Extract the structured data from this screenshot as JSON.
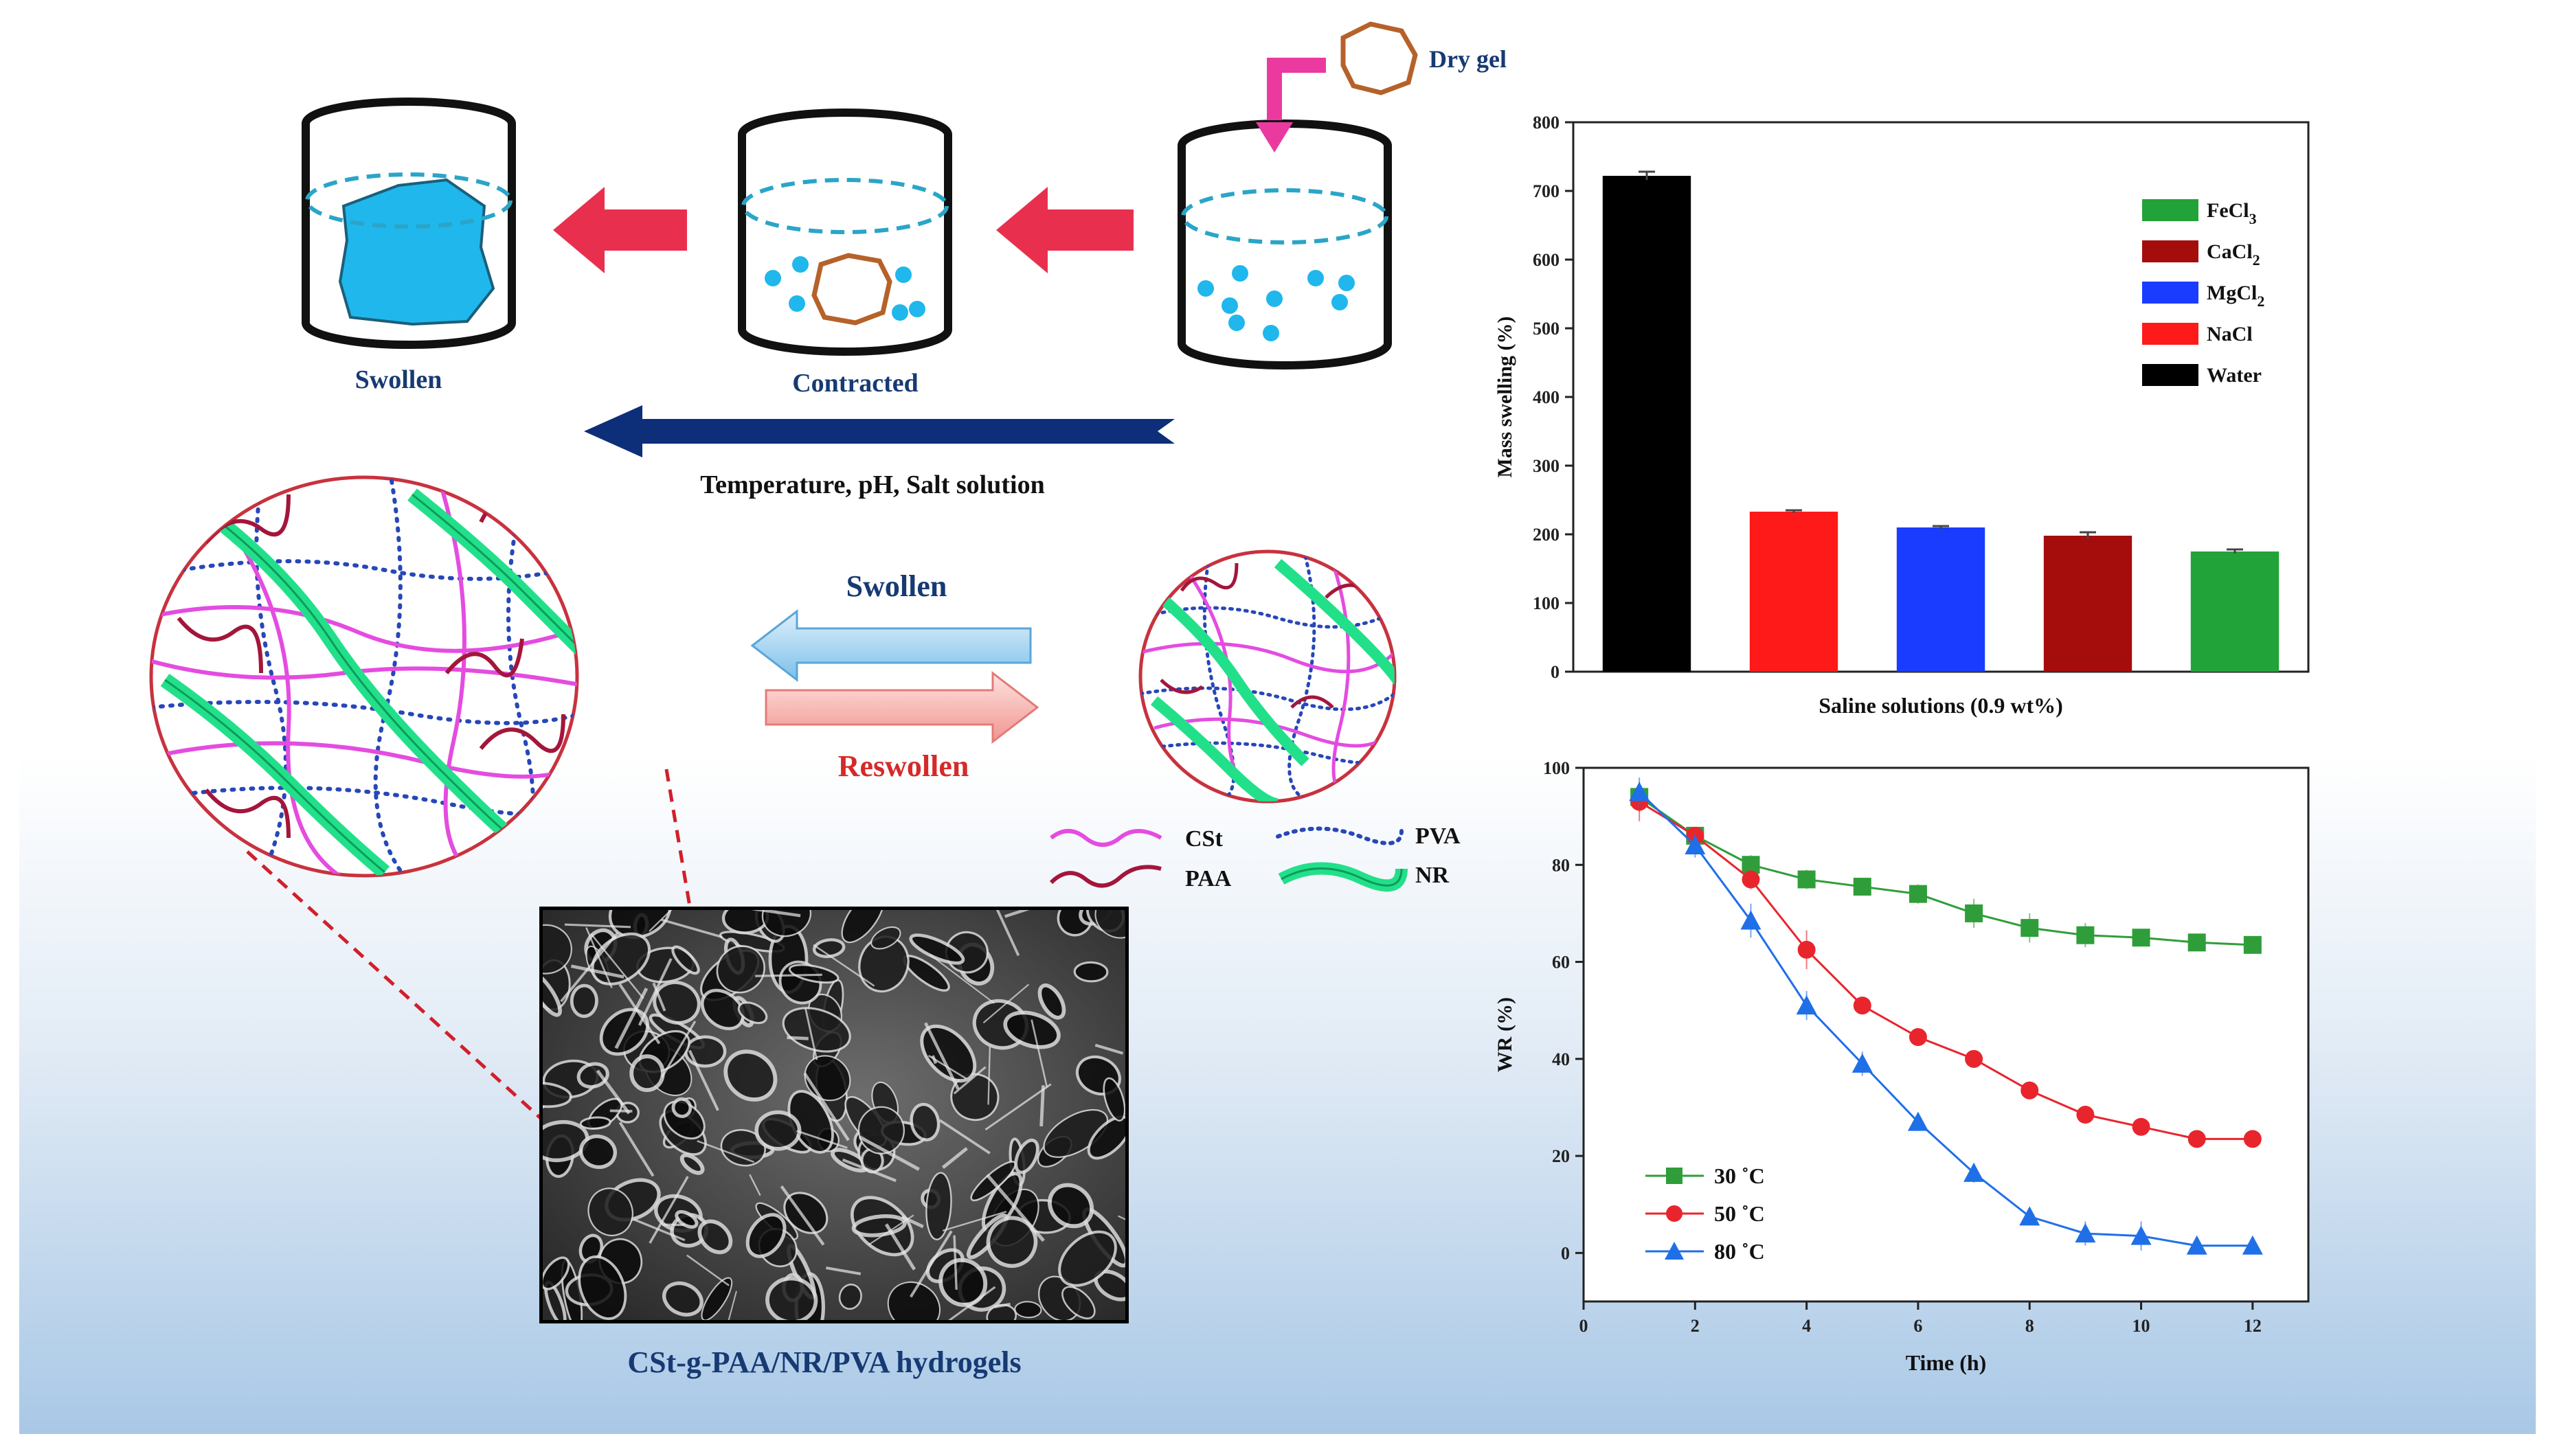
{
  "process": {
    "dry_gel_label": "Dry gel",
    "swollen_label": "Swollen",
    "contracted_label": "Contracted",
    "stimuli_label": "Temperature, pH, Salt solution"
  },
  "network": {
    "swollen_arrow_label": "Swollen",
    "reswollen_arrow_label": "Reswollen",
    "legend": {
      "cst": "CSt",
      "paa": "PAA",
      "pva": "PVA",
      "nr": "NR"
    },
    "caption": "CSt-g-PAA/NR/PVA hydrogels"
  },
  "colors": {
    "cst": "#e44ce0",
    "paa": "#a3163b",
    "pva": "#2747b8",
    "nr": "#22e08a",
    "water": "#1fb7ec",
    "arrow_red": "#e8304e",
    "arrow_navy": "#0d2f7a"
  },
  "chart_data": [
    {
      "type": "bar",
      "xlabel": "Saline solutions (0.9 wt%)",
      "ylabel": "Mass swelling (%)",
      "ylim": [
        0,
        800
      ],
      "yticks": [
        "0",
        "100",
        "200",
        "300",
        "400",
        "500",
        "600",
        "700",
        "800"
      ],
      "categories": [
        "Water",
        "NaCl",
        "MgCl2",
        "CaCl2",
        "FeCl3"
      ],
      "values": [
        722,
        233,
        210,
        198,
        175
      ],
      "errors": [
        6,
        2,
        2,
        5,
        3
      ],
      "colors": [
        "#000000",
        "#ff1a1a",
        "#1a3cff",
        "#a50d0d",
        "#22a33a"
      ],
      "legend": [
        {
          "label": "FeCl",
          "sub": "3",
          "color": "#22a33a"
        },
        {
          "label": "CaCl",
          "sub": "2",
          "color": "#a50d0d"
        },
        {
          "label": "MgCl",
          "sub": "2",
          "color": "#1a3cff"
        },
        {
          "label": "NaCl",
          "sub": "",
          "color": "#ff1a1a"
        },
        {
          "label": "Water",
          "sub": "",
          "color": "#000000"
        }
      ],
      "legend_position": "top-right"
    },
    {
      "type": "line",
      "xlabel": "Time (h)",
      "ylabel": "WR (%)",
      "xlim": [
        0,
        13
      ],
      "ylim": [
        -10,
        100
      ],
      "xticks": [
        "0",
        "2",
        "4",
        "6",
        "8",
        "10",
        "12"
      ],
      "yticks": [
        "0",
        "20",
        "40",
        "60",
        "80",
        "100"
      ],
      "x": [
        1,
        2,
        3,
        4,
        5,
        6,
        7,
        8,
        9,
        10,
        11,
        12
      ],
      "series": [
        {
          "name": "30 ˚C",
          "color": "#2f9e3a",
          "marker": "square",
          "values": [
            94,
            86,
            80,
            77,
            75.5,
            74,
            70,
            67,
            65.5,
            65,
            64,
            63.5
          ],
          "errors": [
            3,
            1.5,
            2,
            2,
            1.5,
            2,
            3,
            3,
            2.5,
            1.5,
            1,
            1.5
          ]
        },
        {
          "name": "50 ˚C",
          "color": "#e8252d",
          "marker": "circle",
          "values": [
            93,
            86,
            77,
            62.5,
            51,
            44.5,
            40,
            33.5,
            28.5,
            26,
            23.5,
            23.5
          ],
          "errors": [
            4,
            1.5,
            2,
            4,
            1.5,
            1,
            1,
            1.5,
            1.5,
            1.5,
            1,
            1
          ]
        },
        {
          "name": "80 ˚C",
          "color": "#1f6fe8",
          "marker": "triangle",
          "values": [
            95,
            84,
            68.5,
            51,
            39,
            27,
            16.5,
            7.5,
            4,
            3.5,
            1.5,
            1.5
          ],
          "errors": [
            3,
            2.5,
            3.5,
            3,
            2.5,
            1,
            2,
            1.5,
            2.5,
            3,
            1,
            1
          ]
        }
      ],
      "legend_position": "bottom-left"
    }
  ]
}
